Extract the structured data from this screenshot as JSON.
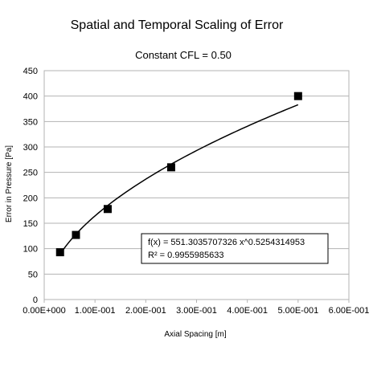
{
  "chart_data": {
    "type": "scatter",
    "title": "Spatial and Temporal Scaling of Error",
    "subtitle": "Constant CFL = 0.50",
    "xlabel": "Axial Spacing [m]",
    "ylabel": "Error in Pressure [Pa]",
    "xlim": [
      0,
      0.6
    ],
    "ylim": [
      0,
      450
    ],
    "x_ticks": [
      0,
      0.1,
      0.2,
      0.3,
      0.4,
      0.5,
      0.6
    ],
    "x_tick_labels": [
      "0.00E+000",
      "1.00E-001",
      "2.00E-001",
      "3.00E-001",
      "4.00E-001",
      "5.00E-001",
      "6.00E-001"
    ],
    "y_ticks": [
      0,
      50,
      100,
      150,
      200,
      250,
      300,
      350,
      400,
      450
    ],
    "y_tick_labels": [
      "0",
      "50",
      "100",
      "150",
      "200",
      "250",
      "300",
      "350",
      "400",
      "450"
    ],
    "grid": "horizontal",
    "series": [
      {
        "marker": "square",
        "color": "#000000",
        "x": [
          0.03125,
          0.0625,
          0.125,
          0.25,
          0.5
        ],
        "y": [
          93,
          127,
          178,
          260,
          400
        ]
      }
    ],
    "trendline": {
      "type": "power",
      "coefficient": 551.3035707326,
      "exponent": 0.5254314953,
      "x_range": [
        0.03125,
        0.5
      ],
      "equation": "f(x) = 551.3035707326 x^0.5254314953",
      "r_squared": "R² = 0.9955985633"
    }
  }
}
